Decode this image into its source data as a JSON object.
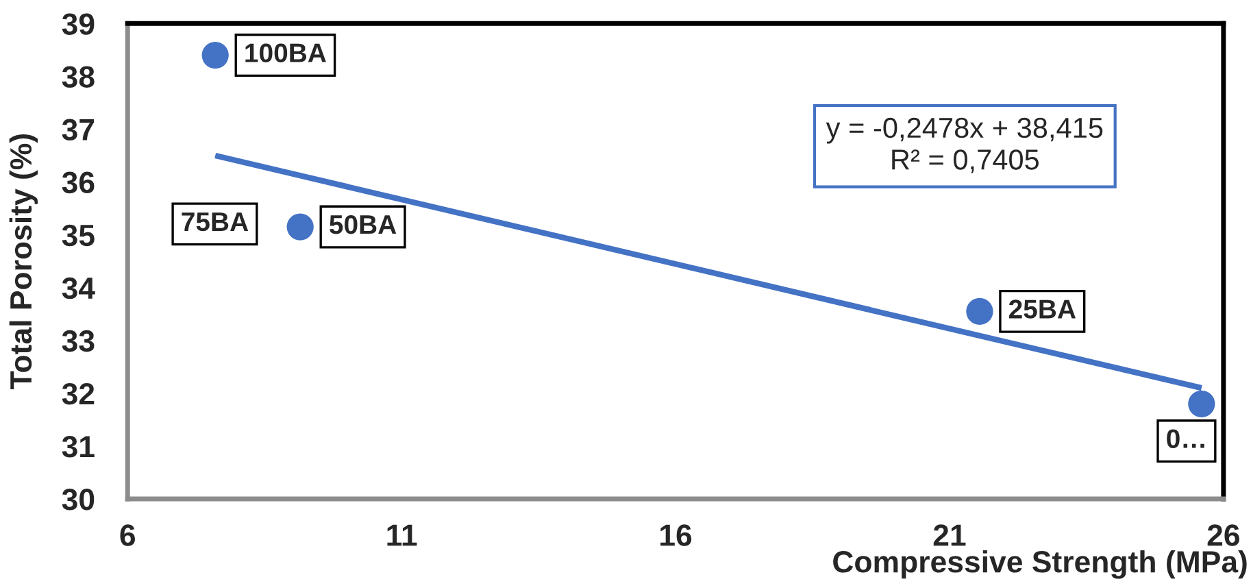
{
  "chart_data": {
    "type": "scatter",
    "xlabel": "Compressive Strength (MPa)",
    "ylabel": "Total Porosity (%)",
    "xlim": [
      6,
      26
    ],
    "ylim": [
      30,
      39
    ],
    "xticks": [
      6,
      11,
      16,
      21,
      26
    ],
    "yticks": [
      30,
      31,
      32,
      33,
      34,
      35,
      36,
      37,
      38,
      39
    ],
    "series": [
      {
        "color": "#4472c4",
        "marker": "circle",
        "x": [
          7.6,
          9.15,
          21.55,
          25.6
        ],
        "values": [
          38.4,
          35.15,
          33.55,
          31.8
        ]
      },
      {
        "type": "line",
        "color": "#4472c4",
        "line_style": "solid",
        "x": [
          7.6,
          25.6
        ],
        "values": [
          36.5,
          32.1
        ]
      }
    ],
    "annotations": [
      {
        "text": "100BA",
        "x": 7.6,
        "y": 38.4
      },
      {
        "text": "75BA",
        "x": 9.15,
        "y": 35.15
      },
      {
        "text": "50BA",
        "x": 9.15,
        "y": 35.15
      },
      {
        "text": "25BA",
        "x": 21.55,
        "y": 33.55
      },
      {
        "text": "0…",
        "x": 25.6,
        "y": 31.8
      },
      "y = -0,2478x + 38,415\nR² = 0,7405"
    ]
  }
}
